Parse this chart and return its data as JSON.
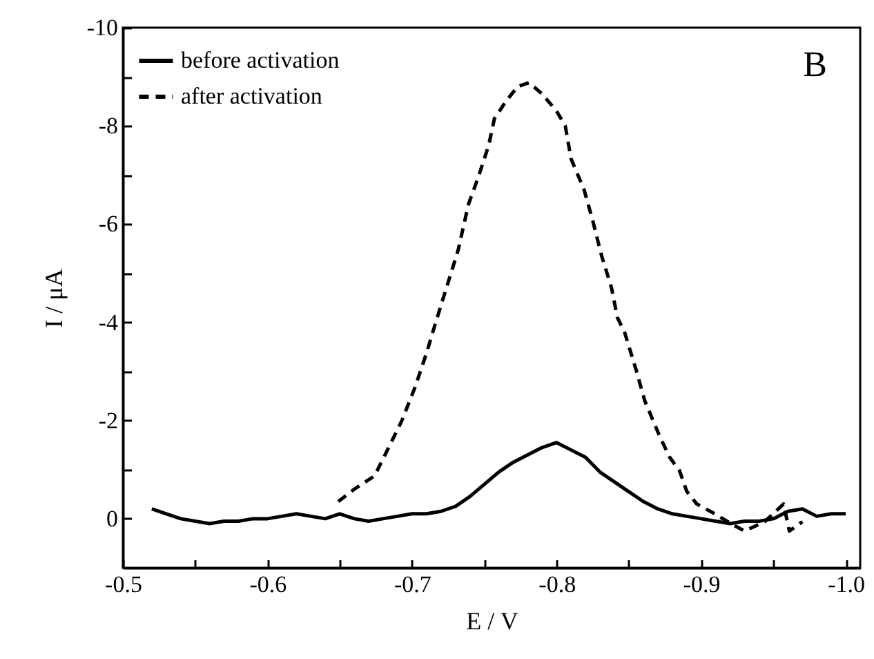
{
  "chart_data": {
    "type": "line",
    "xlabel": "E / V",
    "ylabel": "I / μA",
    "annotations": [
      "B"
    ],
    "legend": "top left",
    "marker": "none",
    "xlim": [
      -0.5,
      -1.01
    ],
    "ylim": [
      1,
      -10
    ],
    "xticks": [
      -0.5,
      {
        "value": -0.55,
        "label": null
      },
      -0.6,
      {
        "value": -0.65,
        "label": null
      },
      -0.7,
      {
        "value": -0.75,
        "label": null
      },
      -0.8,
      {
        "value": -0.85,
        "label": null
      },
      -0.9,
      {
        "value": -0.95,
        "label": null
      },
      {
        "value": -1,
        "label": "-1.0"
      }
    ],
    "yticks": [
      -10,
      {
        "value": -9,
        "label": null
      },
      -8,
      {
        "value": -7,
        "label": null
      },
      -6,
      {
        "value": -5,
        "label": null
      },
      -4,
      {
        "value": -3,
        "label": null
      },
      -2,
      {
        "value": -1,
        "label": null
      },
      0
    ],
    "series": [
      {
        "name": "before activation",
        "color": "#000000",
        "line_style": "solid",
        "x": [
          -0.52,
          -0.53,
          -0.54,
          -0.55,
          -0.56,
          -0.57,
          -0.58,
          -0.59,
          -0.6,
          -0.61,
          -0.62,
          -0.63,
          -0.64,
          -0.65,
          -0.66,
          -0.67,
          -0.68,
          -0.69,
          -0.7,
          -0.71,
          -0.72,
          -0.73,
          -0.74,
          -0.75,
          -0.76,
          -0.77,
          -0.78,
          -0.79,
          -0.8,
          -0.81,
          -0.82,
          -0.83,
          -0.84,
          -0.85,
          -0.86,
          -0.87,
          -0.88,
          -0.89,
          -0.9,
          -0.91,
          -0.92,
          -0.93,
          -0.94,
          -0.95,
          -0.96,
          -0.97,
          -0.98,
          -0.99,
          -1.0
        ],
        "values": [
          -0.2,
          -0.1,
          0,
          0.05,
          0.1,
          0.05,
          0.05,
          0,
          0,
          -0.05,
          -0.1,
          -0.05,
          0,
          -0.1,
          0,
          0.05,
          0,
          -0.05,
          -0.1,
          -0.1,
          -0.15,
          -0.25,
          -0.45,
          -0.7,
          -0.95,
          -1.15,
          -1.3,
          -1.45,
          -1.55,
          -1.4,
          -1.25,
          -0.95,
          -0.75,
          -0.55,
          -0.35,
          -0.2,
          -0.1,
          -0.05,
          0,
          0.05,
          0.1,
          0.05,
          0.05,
          0,
          -0.15,
          -0.2,
          -0.05,
          -0.1,
          -0.1
        ]
      },
      {
        "name": "after activation",
        "color": "#000000",
        "line_style": "dashed",
        "x": [
          -0.649,
          -0.66,
          -0.674,
          -0.683,
          -0.693,
          -0.702,
          -0.71,
          -0.716,
          -0.732,
          -0.739,
          -0.746,
          -0.753,
          -0.757,
          -0.765,
          -0.773,
          -0.781,
          -0.79,
          -0.8,
          -0.806,
          -0.81,
          -0.819,
          -0.825,
          -0.831,
          -0.838,
          -0.842,
          -0.847,
          -0.855,
          -0.861,
          -0.871,
          -0.878,
          -0.885,
          -0.89,
          -0.897,
          -0.907,
          -0.923,
          -0.93,
          -0.944,
          -0.957,
          -0.961,
          -0.97
        ],
        "values": [
          -0.35,
          -0.6,
          -0.87,
          -1.4,
          -2.0,
          -2.67,
          -3.37,
          -3.96,
          -5.48,
          -6.4,
          -6.97,
          -7.6,
          -8.15,
          -8.5,
          -8.8,
          -8.88,
          -8.65,
          -8.3,
          -8.0,
          -7.33,
          -6.7,
          -6.07,
          -5.37,
          -4.7,
          -4.1,
          -3.8,
          -3.03,
          -2.4,
          -1.7,
          -1.26,
          -0.98,
          -0.56,
          -0.3,
          -0.14,
          0.14,
          0.25,
          0.06,
          -0.3,
          0.25,
          0.06
        ]
      }
    ]
  }
}
